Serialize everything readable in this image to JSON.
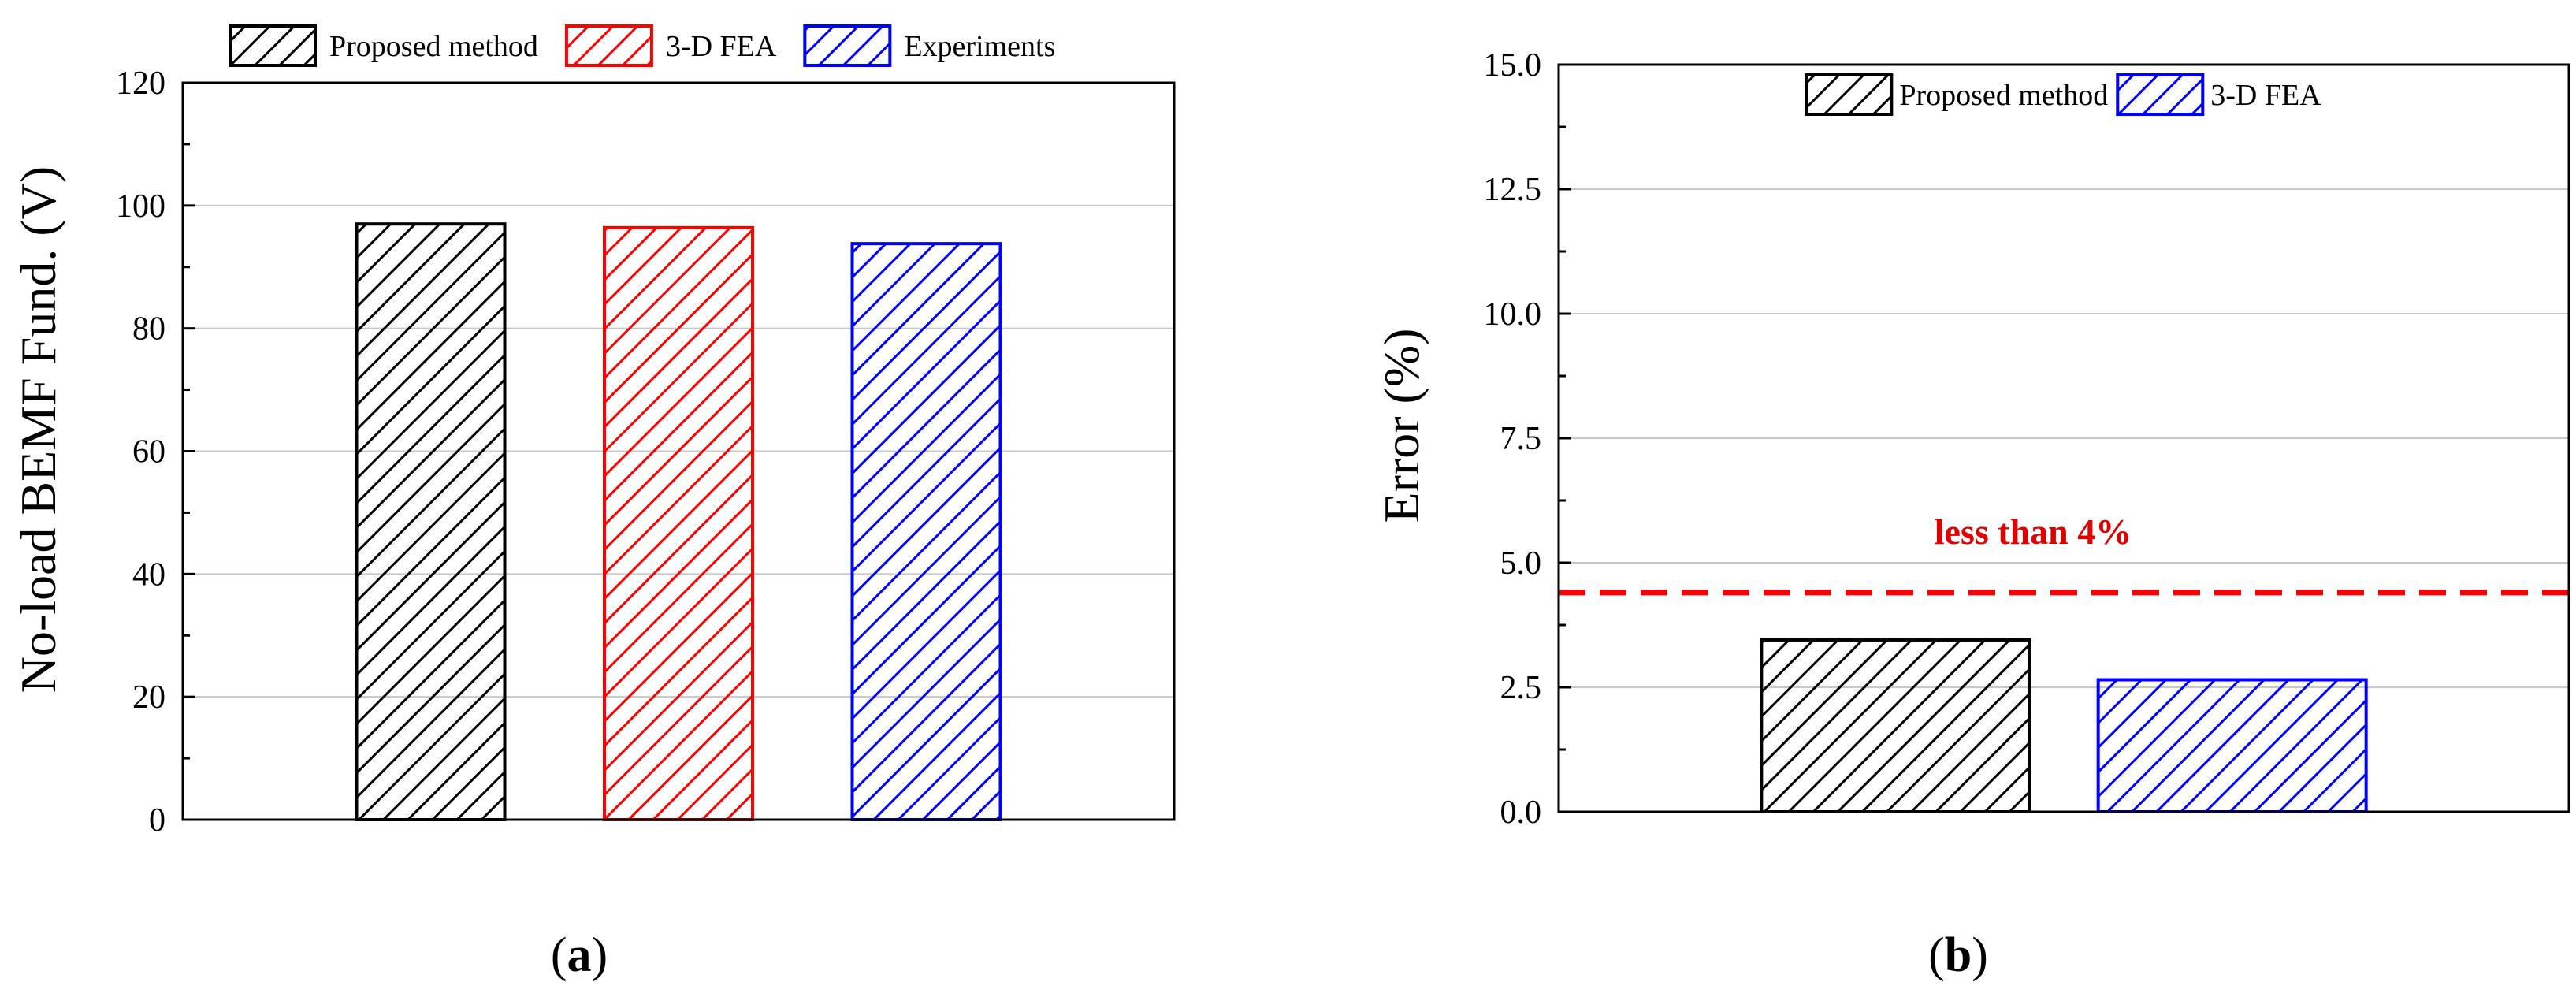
{
  "chart_data": [
    {
      "type": "bar",
      "panel_label": "a",
      "categories": [
        "Proposed method",
        "3-D FEA",
        "Experiments"
      ],
      "values": [
        97.0,
        96.4,
        93.8
      ],
      "ylabel": "No-load BEMF Fund. (V)",
      "ylim": [
        0,
        120
      ],
      "yticks": [
        "0",
        "20",
        "40",
        "60",
        "80",
        "100",
        "120"
      ],
      "grid": true,
      "legend_position": "top-outside",
      "legend": [
        {
          "label": "Proposed method",
          "color": "#000000"
        },
        {
          "label": "3-D FEA",
          "color": "#ff0000"
        },
        {
          "label": "Experiments",
          "color": "#0000ff"
        }
      ]
    },
    {
      "type": "bar",
      "panel_label": "b",
      "categories": [
        "Proposed method",
        "3-D FEA"
      ],
      "values": [
        3.45,
        2.65
      ],
      "ylabel": "Error (%)",
      "ylim": [
        0,
        15
      ],
      "yticks": [
        "0.0",
        "2.5",
        "5.0",
        "7.5",
        "10.0",
        "12.5",
        "15.0"
      ],
      "grid": true,
      "legend_position": "top-center",
      "legend": [
        {
          "label": "Proposed method",
          "color": "#000000"
        },
        {
          "label": "3-D FEA",
          "color": "#0000ff"
        }
      ],
      "reference_line": {
        "value": 4.4,
        "color": "#ff0000",
        "label": "less than 4%"
      }
    }
  ],
  "captions": {
    "a": "a",
    "b": "b",
    "open": "(",
    "close": ")"
  }
}
